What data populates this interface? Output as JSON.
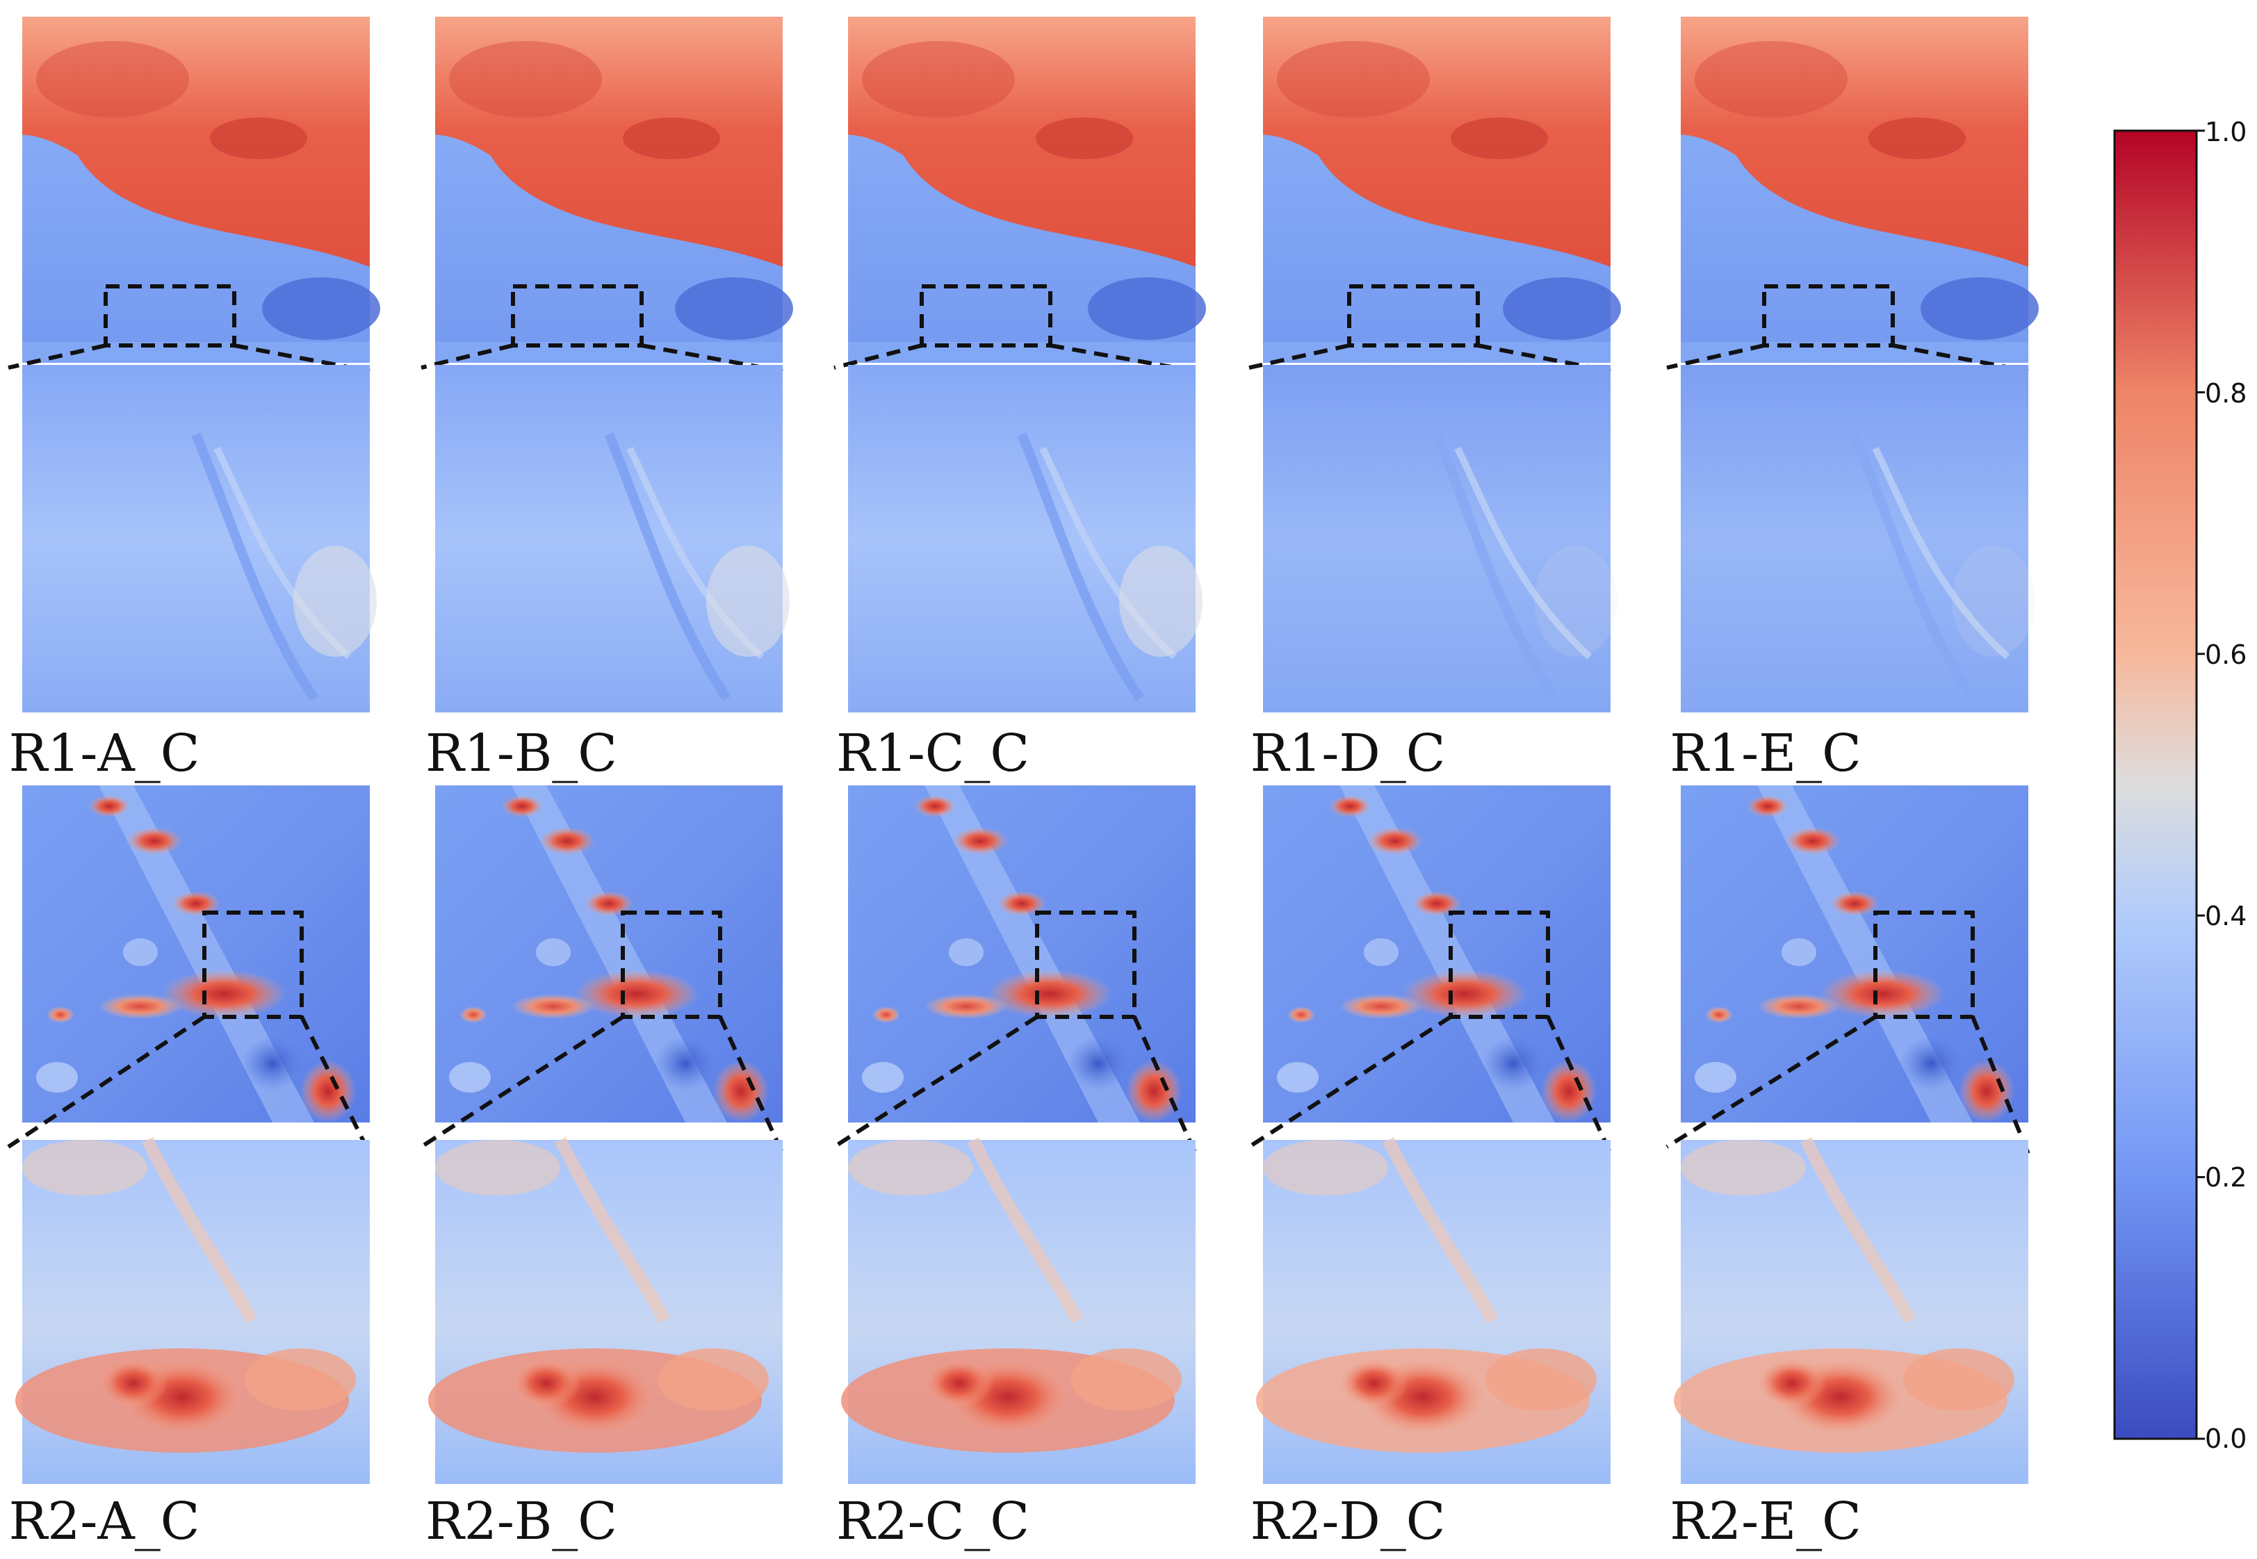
{
  "panels": {
    "row1": {
      "labels": [
        "R1-A_C",
        "R1-B_C",
        "R1-C_C",
        "R1-D_C",
        "R1-E_C"
      ]
    },
    "row2": {
      "labels": [
        "R2-A_C",
        "R2-B_C",
        "R2-C_C",
        "R2-D_C",
        "R2-E_C"
      ]
    }
  },
  "colorbar": {
    "colormap": "coolwarm",
    "range": [
      0.0,
      1.0
    ],
    "tick_labels": [
      "1.0",
      "0.8",
      "0.6",
      "0.4",
      "0.2",
      "0.0"
    ],
    "colors": {
      "low": "#3b4cc0",
      "mid_low": "#8db0fe",
      "mid": "#dddddd",
      "mid_high": "#f49a7b",
      "high": "#b40426"
    }
  },
  "zoom_box_style": "dashed-black"
}
